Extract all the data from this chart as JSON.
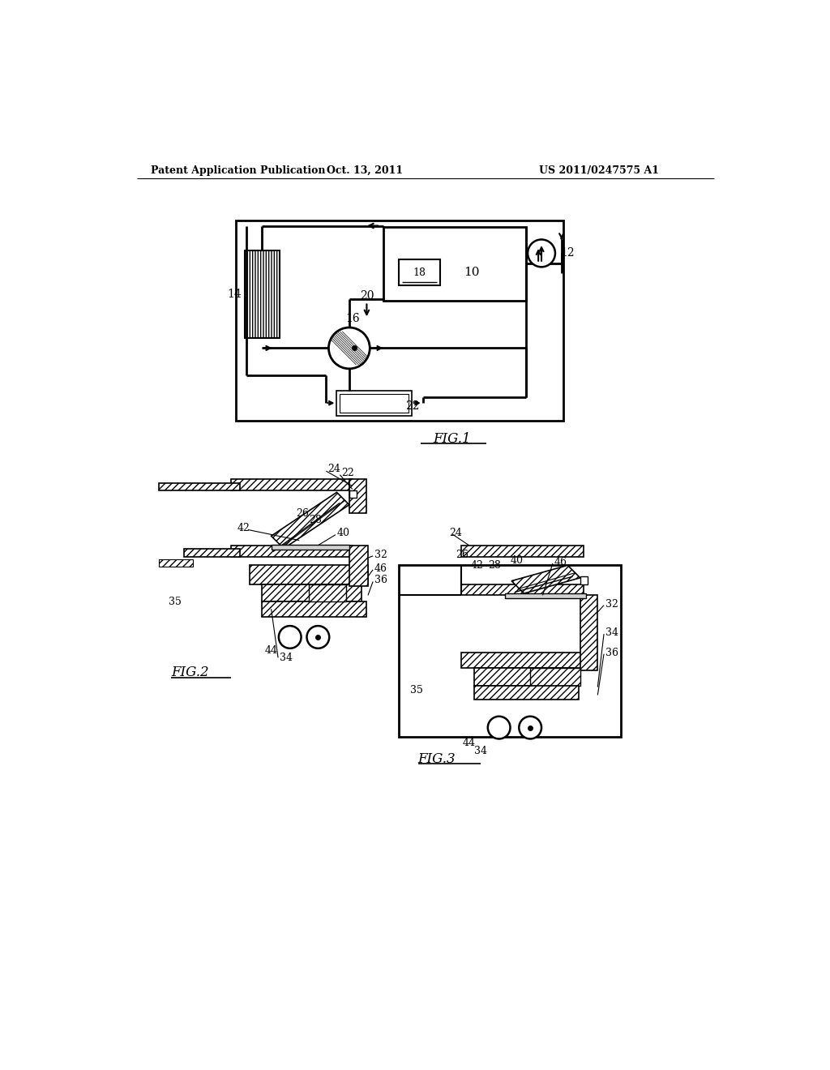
{
  "title_left": "Patent Application Publication",
  "title_center": "Oct. 13, 2011",
  "title_right": "US 2011/0247575 A1",
  "bg_color": "#ffffff"
}
